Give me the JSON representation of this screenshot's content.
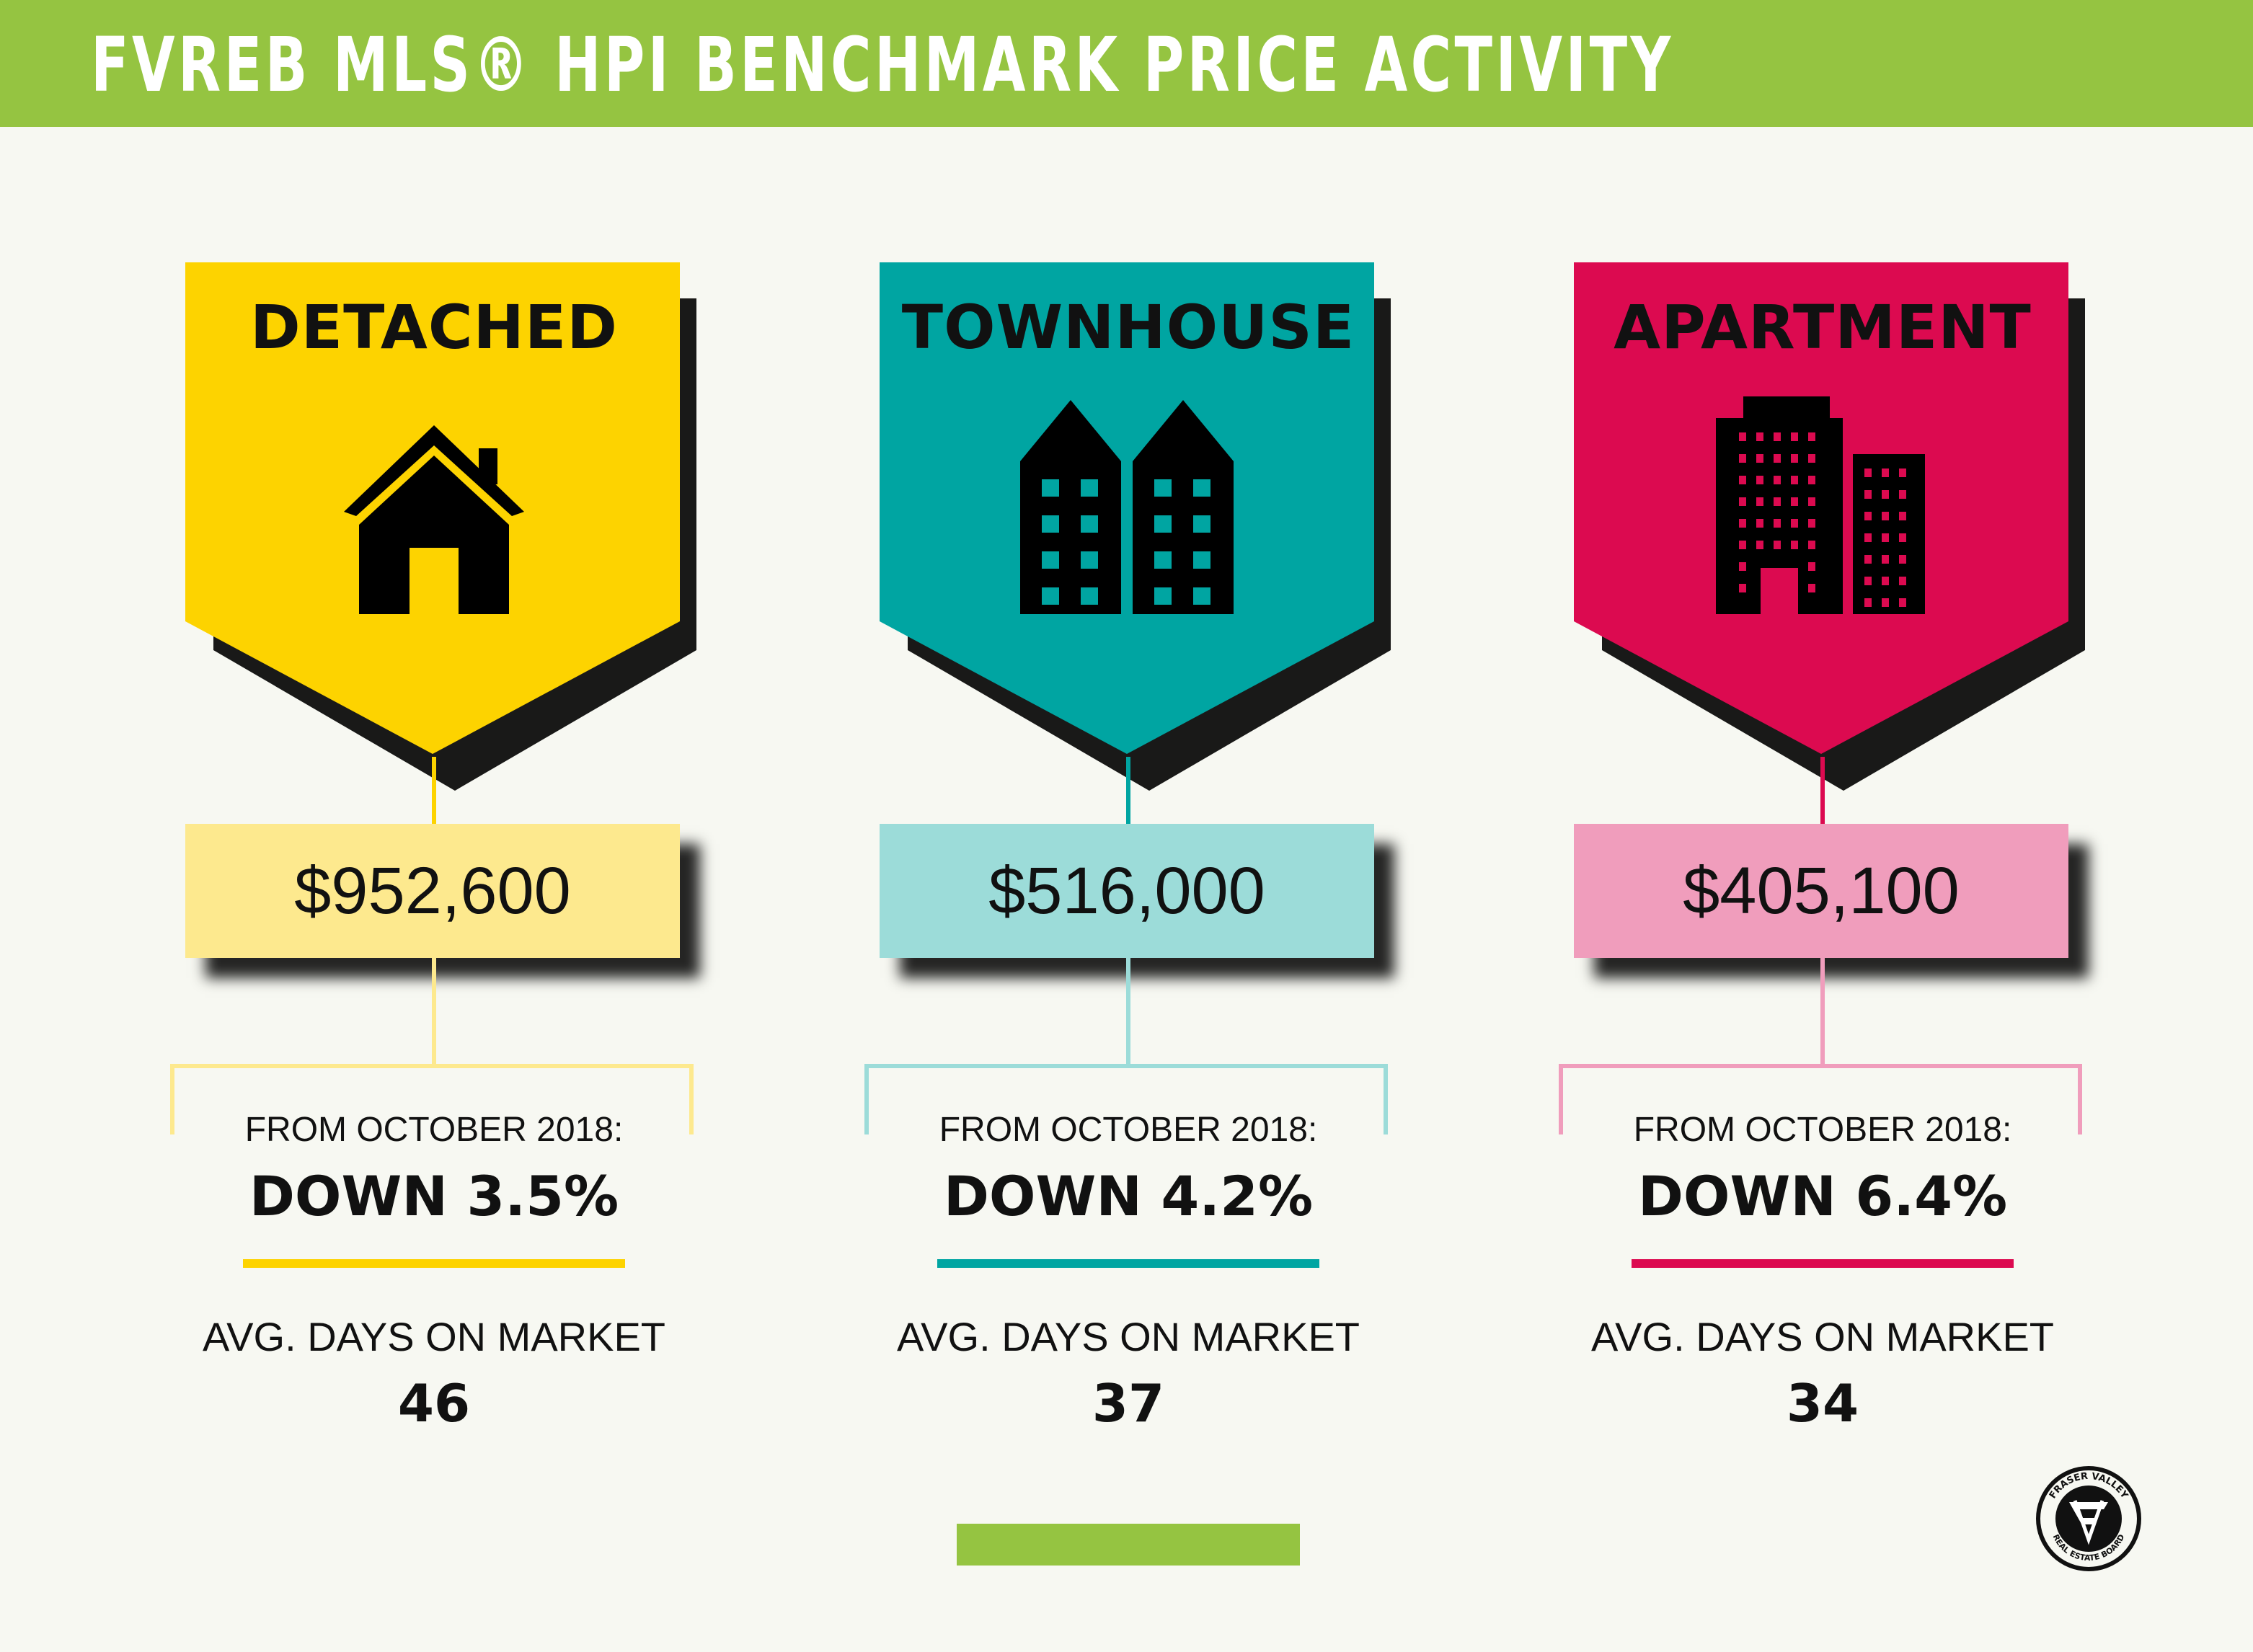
{
  "header": {
    "title": "FVREB MLS® HPI BENCHMARK PRICE ACTIVITY",
    "bar_color": "#95c441"
  },
  "categories": [
    {
      "label": "DETACHED",
      "icon": "house-icon",
      "price": "$952,600",
      "from_label": "FROM OCTOBER 2018:",
      "change": "DOWN 3.5%",
      "dom_label": "AVG. DAYS ON MARKET",
      "dom_value": "46",
      "colors": {
        "tag": "#fdd300",
        "box": "#fde98e",
        "line": "#fde98e",
        "accent": "#fdd300"
      }
    },
    {
      "label": "TOWNHOUSE",
      "icon": "townhouse-icon",
      "price": "$516,000",
      "from_label": "FROM OCTOBER 2018:",
      "change": "DOWN 4.2%",
      "dom_label": "AVG. DAYS ON MARKET",
      "dom_value": "37",
      "colors": {
        "tag": "#00a5a2",
        "box": "#9cdcd9",
        "line": "#9cdcd9",
        "accent": "#00a5a2"
      }
    },
    {
      "label": "APARTMENT",
      "icon": "apartment-building-icon",
      "price": "$405,100",
      "from_label": "FROM OCTOBER 2018:",
      "change": "DOWN 6.4%",
      "dom_label": "AVG. DAYS ON MARKET",
      "dom_value": "34",
      "colors": {
        "tag": "#dc0a50",
        "box": "#f09dbc",
        "line": "#f09dbc",
        "accent": "#dc0a50"
      }
    }
  ],
  "footer": {
    "bar_color": "#95c441",
    "logo": "fraser-valley-real-estate-board-logo-icon",
    "logo_text": "FRASER VALLEY REAL ESTATE BOARD"
  }
}
